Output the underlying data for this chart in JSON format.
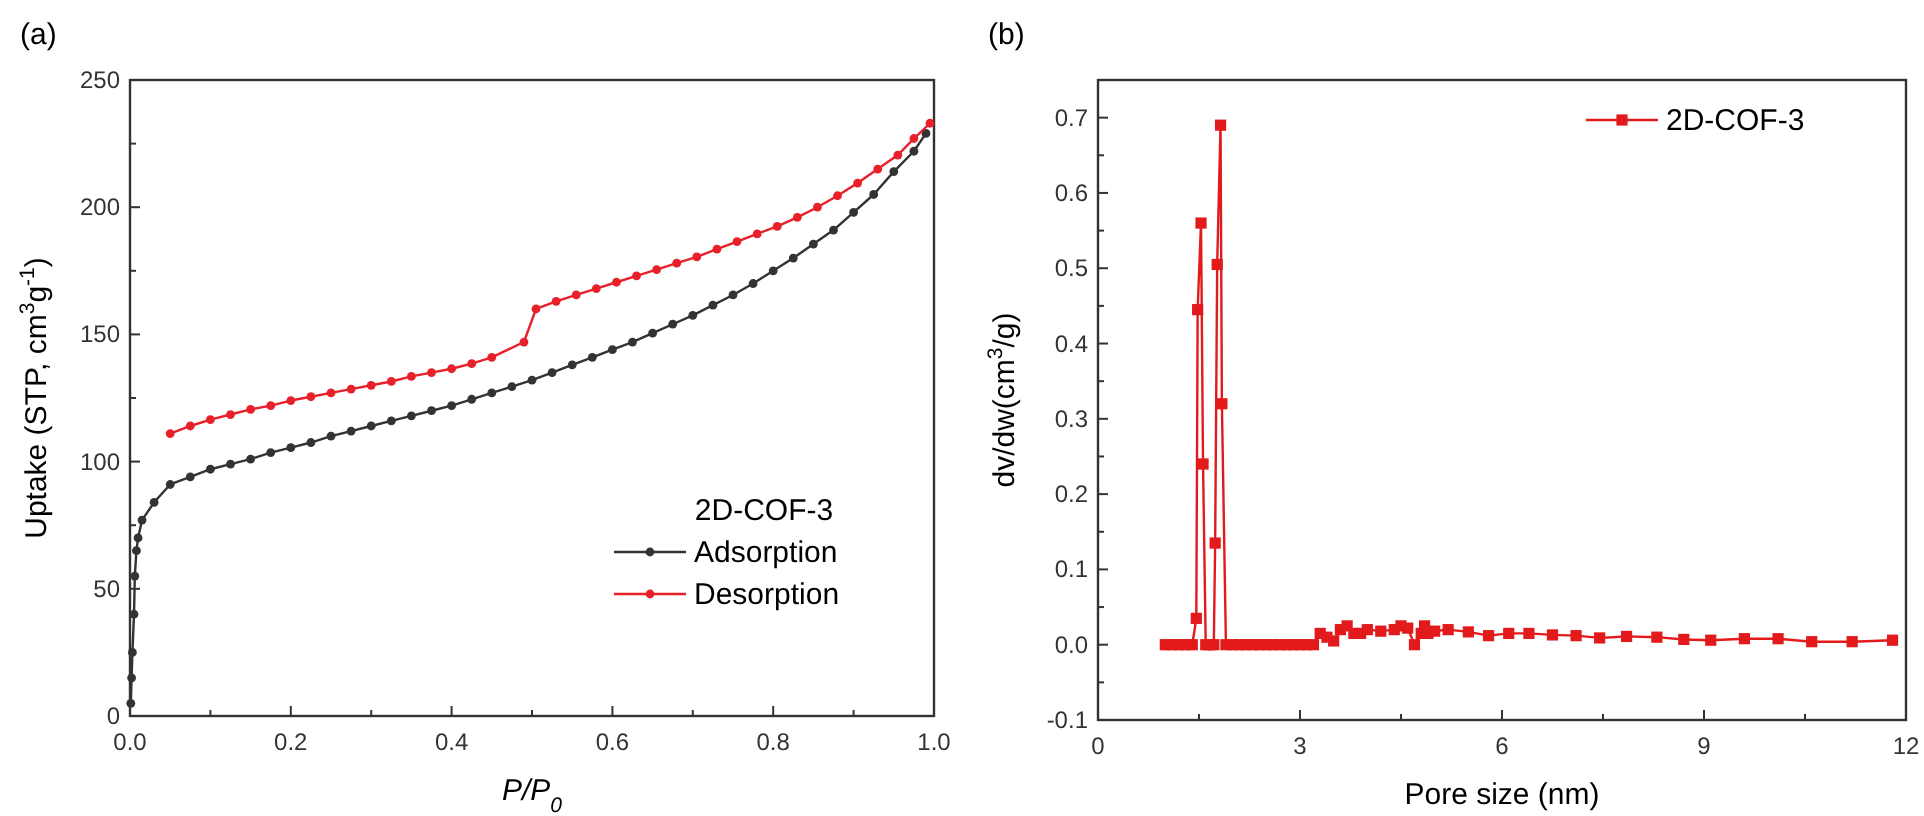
{
  "chart_data": [
    {
      "type": "line",
      "title": "(a)",
      "xlabel": "P/P$_{0}$",
      "ylabel": "Uptake (STP, cm$^{3}$g$^{-1}$)",
      "legend_title": "2D-COF-3",
      "legend": "bottom right",
      "marker": "circle",
      "xlim": [
        0,
        1
      ],
      "ylim": [
        0,
        250
      ],
      "xticks": [
        {
          "value": 0,
          "label": "0.0"
        },
        0.2,
        0.4,
        0.6,
        0.8,
        {
          "value": 1,
          "label": "1.0"
        }
      ],
      "yticks": [
        0,
        50,
        100,
        150,
        200,
        250
      ],
      "series": [
        {
          "name": "Adsorption",
          "color": "#333333",
          "x": [
            0.001,
            0.002,
            0.003,
            0.005,
            0.006,
            0.008,
            0.01,
            0.015,
            0.03,
            0.05,
            0.075,
            0.1,
            0.125,
            0.15,
            0.175,
            0.2,
            0.225,
            0.25,
            0.275,
            0.3,
            0.325,
            0.35,
            0.375,
            0.4,
            0.425,
            0.45,
            0.475,
            0.5,
            0.525,
            0.55,
            0.575,
            0.6,
            0.625,
            0.65,
            0.675,
            0.7,
            0.725,
            0.75,
            0.775,
            0.8,
            0.825,
            0.85,
            0.875,
            0.9,
            0.925,
            0.95,
            0.975,
            0.99
          ],
          "values": [
            5,
            15,
            25,
            40,
            55,
            65,
            70,
            77,
            84,
            91,
            94,
            97,
            99,
            101,
            103.5,
            105.5,
            107.5,
            110,
            112,
            114,
            116,
            118,
            120,
            122,
            124.5,
            127,
            129.5,
            132,
            135,
            138,
            141,
            144,
            147,
            150.5,
            154,
            157.5,
            161.5,
            165.5,
            170,
            175,
            180,
            185.5,
            191,
            198,
            205,
            214,
            222,
            229
          ]
        },
        {
          "name": "Desorption",
          "color": "#e8202a",
          "x": [
            0.05,
            0.075,
            0.1,
            0.125,
            0.15,
            0.175,
            0.2,
            0.225,
            0.25,
            0.275,
            0.3,
            0.325,
            0.35,
            0.375,
            0.4,
            0.425,
            0.45,
            0.49,
            0.505,
            0.53,
            0.555,
            0.58,
            0.605,
            0.63,
            0.655,
            0.68,
            0.705,
            0.73,
            0.755,
            0.78,
            0.805,
            0.83,
            0.855,
            0.88,
            0.905,
            0.93,
            0.955,
            0.975,
            0.995
          ],
          "values": [
            111,
            114,
            116.5,
            118.5,
            120.5,
            122,
            124,
            125.5,
            127,
            128.5,
            130,
            131.5,
            133.5,
            135,
            136.5,
            138.5,
            141,
            147,
            160,
            163,
            165.5,
            168,
            170.5,
            173,
            175.5,
            178,
            180.5,
            183.5,
            186.5,
            189.5,
            192.5,
            196,
            200,
            204.5,
            209.5,
            215,
            220.5,
            227,
            233
          ]
        }
      ]
    },
    {
      "type": "line",
      "title": "(b)",
      "xlabel": "Pore size (nm)",
      "ylabel": "dv/dw(cm$^{3}$/g)",
      "legend": "top right",
      "marker": "square",
      "xlim": [
        0,
        12
      ],
      "ylim": [
        -0.1,
        0.75
      ],
      "xticks": [
        0,
        3,
        6,
        9,
        12
      ],
      "yticks": [
        -0.1,
        {
          "value": 0,
          "label": "0.0"
        },
        0.1,
        0.2,
        0.3,
        0.4,
        0.5,
        0.6,
        0.7
      ],
      "series": [
        {
          "name": "2D-COF-3",
          "color": "#e31a1c",
          "x": [
            1.0,
            1.1,
            1.2,
            1.3,
            1.4,
            1.46,
            1.48,
            1.53,
            1.56,
            1.6,
            1.66,
            1.72,
            1.74,
            1.77,
            1.82,
            1.84,
            1.9,
            2.0,
            2.1,
            2.2,
            2.3,
            2.4,
            2.5,
            2.6,
            2.7,
            2.8,
            2.9,
            3.0,
            3.1,
            3.2,
            3.3,
            3.4,
            3.5,
            3.6,
            3.7,
            3.8,
            3.9,
            4.0,
            4.2,
            4.4,
            4.5,
            4.6,
            4.7,
            4.8,
            4.85,
            4.9,
            5.0,
            5.2,
            5.5,
            5.8,
            6.1,
            6.4,
            6.75,
            7.1,
            7.45,
            7.85,
            8.3,
            8.7,
            9.1,
            9.6,
            10.1,
            10.6,
            11.2,
            11.8
          ],
          "values": [
            0,
            0,
            0,
            0,
            0,
            0.035,
            0.445,
            0.56,
            0.24,
            0,
            0,
            0,
            0.135,
            0.505,
            0.69,
            0.32,
            0,
            0,
            0,
            0,
            0,
            0,
            0,
            0,
            0,
            0,
            0,
            0,
            0,
            0,
            0.015,
            0.01,
            0.005,
            0.02,
            0.025,
            0.015,
            0.015,
            0.02,
            0.018,
            0.02,
            0.025,
            0.022,
            0,
            0.015,
            0.025,
            0.015,
            0.018,
            0.02,
            0.017,
            0.012,
            0.015,
            0.015,
            0.013,
            0.012,
            0.009,
            0.011,
            0.01,
            0.007,
            0.006,
            0.008,
            0.008,
            0.004,
            0.004,
            0.006
          ]
        }
      ]
    }
  ]
}
